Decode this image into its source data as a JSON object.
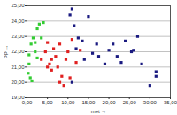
{
  "chart_data": {
    "type": "scatter",
    "x_label": "met",
    "y_label": "PP",
    "xlim": [
      0,
      35
    ],
    "ylim": [
      19,
      25
    ],
    "xticks": [
      {
        "value": 0,
        "label": "0,00"
      },
      {
        "value": 5,
        "label": "5,00"
      },
      {
        "value": 10,
        "label": "10,00"
      },
      {
        "value": 15,
        "label": "15,00"
      },
      {
        "value": 20,
        "label": "20,00"
      },
      {
        "value": 25,
        "label": "25,00"
      },
      {
        "value": 30,
        "label": "30,00"
      },
      {
        "value": 35,
        "label": "35,00"
      }
    ],
    "yticks": [
      {
        "value": 19,
        "label": "19,00"
      },
      {
        "value": 20,
        "label": "20,00"
      },
      {
        "value": 21,
        "label": "21,00"
      },
      {
        "value": 22,
        "label": "22,00"
      },
      {
        "value": 23,
        "label": "23,00"
      },
      {
        "value": 24,
        "label": "24,00"
      },
      {
        "value": 25,
        "label": "25,00"
      }
    ],
    "grid": true,
    "series": [
      {
        "color": "#33cc33",
        "marker": "square",
        "x": [
          0.5,
          0.5,
          0.8,
          1,
          1.5,
          2,
          2.5,
          2.5,
          3,
          4,
          1.2,
          2,
          3.5,
          0.3
        ],
        "y": [
          21.8,
          21.2,
          20.3,
          22.5,
          22.9,
          22.6,
          21.6,
          23.5,
          23.8,
          23.9,
          20.1,
          22.0,
          22.9,
          20.6
        ]
      },
      {
        "color": "#e02020",
        "marker": "square",
        "x": [
          3.5,
          4.5,
          5,
          5.5,
          6,
          6.5,
          7,
          7.5,
          8,
          8.5,
          9,
          9.5,
          10,
          10.5,
          11,
          12,
          13,
          8,
          6,
          5
        ],
        "y": [
          21.5,
          22.0,
          22.6,
          21.2,
          20.8,
          22.2,
          21.7,
          21.0,
          22.5,
          20.4,
          19.8,
          21.5,
          22.0,
          20.3,
          22.8,
          21.3,
          22.1,
          20.0,
          21.5,
          21.0
        ]
      },
      {
        "color": "#1a1a80",
        "marker": "square",
        "x": [
          10.5,
          11,
          11.5,
          12.5,
          13.5,
          15,
          17,
          17.5,
          19,
          20,
          21,
          22,
          23,
          24,
          25.5,
          27,
          28,
          30,
          31.5,
          31.5,
          12,
          14,
          16,
          11,
          26
        ],
        "y": [
          24.4,
          24.8,
          23.7,
          22.9,
          22.7,
          24.3,
          22.5,
          21.7,
          21.2,
          22.1,
          22.5,
          21.7,
          21.3,
          22.7,
          22.0,
          23.0,
          21.2,
          19.8,
          20.7,
          20.4,
          22.2,
          21.5,
          21.9,
          20.0,
          22.1
        ]
      }
    ]
  }
}
